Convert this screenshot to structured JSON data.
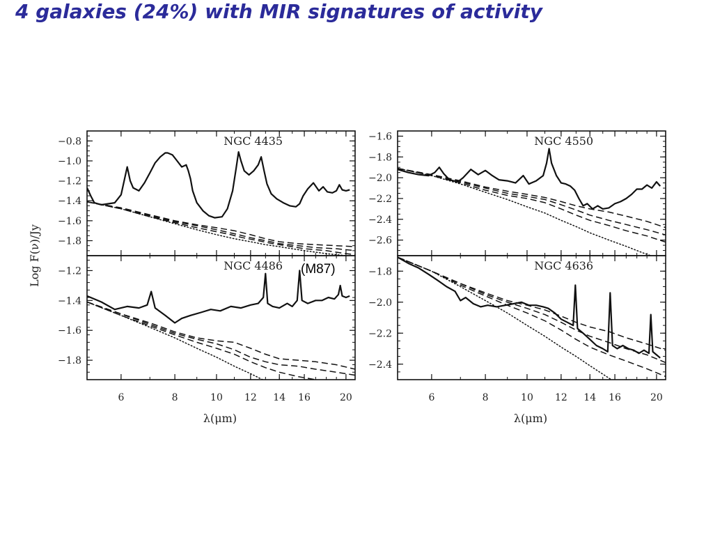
{
  "slide": {
    "title": "4 galaxies (24%) with MIR signatures of activity",
    "title_color": "#2b2b9a"
  },
  "figure": {
    "ylabel": "Log F(ν)/Jy",
    "xlabel": "λ(μm)",
    "annotation": "(M87)"
  },
  "chart_data": [
    {
      "type": "line",
      "scale": "log-x",
      "title": "NGC 4435",
      "xlabel": "λ(μm)",
      "ylabel": "Log F(ν)/Jy",
      "xlim": [
        5.0,
        21.0
      ],
      "ylim": [
        -1.95,
        -0.7
      ],
      "xticks": [
        6,
        8,
        10,
        12,
        14,
        16,
        20
      ],
      "yticks": [
        -0.8,
        -1.0,
        -1.2,
        -1.4,
        -1.6,
        -1.8
      ],
      "series": [
        {
          "style": "solid",
          "x": [
            5.0,
            5.1,
            5.2,
            5.4,
            5.6,
            5.8,
            6.0,
            6.1,
            6.2,
            6.3,
            6.4,
            6.6,
            6.8,
            7.0,
            7.2,
            7.4,
            7.6,
            7.7,
            7.9,
            8.1,
            8.3,
            8.5,
            8.6,
            8.7,
            8.8,
            9.0,
            9.3,
            9.6,
            9.9,
            10.3,
            10.6,
            10.9,
            11.1,
            11.25,
            11.4,
            11.6,
            11.9,
            12.2,
            12.5,
            12.7,
            12.9,
            13.1,
            13.4,
            13.8,
            14.3,
            14.8,
            15.3,
            15.6,
            15.9,
            16.3,
            16.8,
            17.3,
            17.7,
            18.1,
            18.6,
            19.0,
            19.3,
            19.6,
            20.0,
            20.4
          ],
          "y": [
            -1.27,
            -1.35,
            -1.42,
            -1.44,
            -1.43,
            -1.42,
            -1.34,
            -1.2,
            -1.06,
            -1.2,
            -1.27,
            -1.3,
            -1.22,
            -1.12,
            -1.02,
            -0.96,
            -0.92,
            -0.92,
            -0.94,
            -1.0,
            -1.06,
            -1.04,
            -1.1,
            -1.18,
            -1.3,
            -1.42,
            -1.5,
            -1.55,
            -1.57,
            -1.56,
            -1.48,
            -1.3,
            -1.08,
            -0.91,
            -1.0,
            -1.1,
            -1.14,
            -1.1,
            -1.04,
            -0.96,
            -1.1,
            -1.23,
            -1.33,
            -1.38,
            -1.42,
            -1.45,
            -1.46,
            -1.43,
            -1.35,
            -1.28,
            -1.22,
            -1.3,
            -1.26,
            -1.31,
            -1.32,
            -1.3,
            -1.24,
            -1.29,
            -1.3,
            -1.29
          ]
        },
        {
          "style": "dotted",
          "x": [
            5.0,
            6.0,
            7.0,
            8.0,
            9.0,
            10.0,
            11.0,
            12.0,
            13.0,
            14.0,
            16.0,
            18.0,
            20.0,
            21.0
          ],
          "y": [
            -1.41,
            -1.48,
            -1.56,
            -1.63,
            -1.69,
            -1.74,
            -1.78,
            -1.81,
            -1.84,
            -1.86,
            -1.9,
            -1.93,
            -1.95,
            -1.96
          ]
        },
        {
          "style": "dashed",
          "x": [
            5.0,
            6.0,
            7.0,
            8.0,
            9.0,
            10.0,
            10.8,
            11.5,
            12.5,
            13.5,
            14.5,
            16.0,
            18.0,
            20.0,
            21.0
          ],
          "y": [
            -1.41,
            -1.48,
            -1.56,
            -1.62,
            -1.67,
            -1.71,
            -1.74,
            -1.77,
            -1.8,
            -1.83,
            -1.85,
            -1.88,
            -1.9,
            -1.93,
            -1.94
          ]
        },
        {
          "style": "dashed",
          "x": [
            5.0,
            6.0,
            7.0,
            8.0,
            9.0,
            10.0,
            11.0,
            12.0,
            13.0,
            14.0,
            15.5,
            17.0,
            19.0,
            21.0
          ],
          "y": [
            -1.41,
            -1.48,
            -1.55,
            -1.61,
            -1.65,
            -1.69,
            -1.73,
            -1.77,
            -1.8,
            -1.83,
            -1.85,
            -1.87,
            -1.88,
            -1.9
          ]
        },
        {
          "style": "dashed",
          "x": [
            5.0,
            6.0,
            7.0,
            8.0,
            9.0,
            10.0,
            11.0,
            12.0,
            13.0,
            14.0,
            15.5,
            17.0,
            19.0,
            21.0
          ],
          "y": [
            -1.41,
            -1.47,
            -1.54,
            -1.6,
            -1.64,
            -1.67,
            -1.7,
            -1.74,
            -1.78,
            -1.81,
            -1.83,
            -1.84,
            -1.85,
            -1.86
          ]
        }
      ]
    },
    {
      "type": "line",
      "scale": "log-x",
      "title": "NGC 4550",
      "xlabel": "λ(μm)",
      "ylabel": "Log F(ν)/Jy",
      "xlim": [
        5.0,
        21.0
      ],
      "ylim": [
        -2.75,
        -1.55
      ],
      "xticks": [
        6,
        8,
        10,
        12,
        14,
        16,
        20
      ],
      "yticks": [
        -1.6,
        -1.8,
        -2.0,
        -2.2,
        -2.4,
        -2.6
      ],
      "series": [
        {
          "style": "solid",
          "x": [
            5.0,
            5.3,
            5.6,
            5.9,
            6.1,
            6.25,
            6.4,
            6.6,
            6.9,
            7.1,
            7.4,
            7.7,
            8.0,
            8.3,
            8.6,
            9.0,
            9.4,
            9.8,
            10.1,
            10.5,
            10.9,
            11.1,
            11.25,
            11.4,
            11.7,
            12.0,
            12.3,
            12.6,
            12.9,
            13.2,
            13.5,
            13.8,
            14.2,
            14.6,
            15.0,
            15.5,
            16.0,
            16.5,
            17.0,
            17.5,
            18.0,
            18.5,
            19.0,
            19.5,
            20.0,
            20.4
          ],
          "y": [
            -1.92,
            -1.95,
            -1.97,
            -1.98,
            -1.95,
            -1.9,
            -1.96,
            -2.02,
            -2.04,
            -2.0,
            -1.92,
            -1.97,
            -1.93,
            -1.98,
            -2.02,
            -2.03,
            -2.05,
            -1.98,
            -2.06,
            -2.03,
            -1.98,
            -1.86,
            -1.72,
            -1.86,
            -1.98,
            -2.05,
            -2.06,
            -2.08,
            -2.12,
            -2.2,
            -2.27,
            -2.25,
            -2.3,
            -2.27,
            -2.3,
            -2.29,
            -2.25,
            -2.23,
            -2.2,
            -2.16,
            -2.11,
            -2.11,
            -2.07,
            -2.1,
            -2.04,
            -2.08
          ]
        },
        {
          "style": "dotted",
          "x": [
            5.0,
            6.0,
            7.0,
            8.0,
            9.0,
            10.0,
            11.0,
            12.0,
            13.0,
            14.0,
            15.5,
            17.0,
            18.5,
            20.0,
            21.0
          ],
          "y": [
            -1.91,
            -1.98,
            -2.06,
            -2.14,
            -2.21,
            -2.28,
            -2.34,
            -2.41,
            -2.47,
            -2.53,
            -2.6,
            -2.66,
            -2.72,
            -2.77,
            -2.8
          ]
        },
        {
          "style": "dashed",
          "x": [
            5.0,
            6.0,
            7.0,
            8.0,
            9.0,
            10.0,
            11.0,
            12.0,
            13.0,
            14.0,
            15.5,
            17.0,
            19.0,
            21.0
          ],
          "y": [
            -1.91,
            -1.98,
            -2.05,
            -2.12,
            -2.17,
            -2.2,
            -2.24,
            -2.3,
            -2.36,
            -2.41,
            -2.46,
            -2.51,
            -2.56,
            -2.62
          ]
        },
        {
          "style": "dashed",
          "x": [
            5.0,
            6.0,
            7.0,
            8.0,
            9.0,
            10.0,
            11.0,
            12.0,
            13.0,
            14.0,
            15.5,
            17.0,
            19.0,
            21.0
          ],
          "y": [
            -1.91,
            -1.97,
            -2.04,
            -2.1,
            -2.15,
            -2.18,
            -2.21,
            -2.26,
            -2.31,
            -2.36,
            -2.41,
            -2.45,
            -2.5,
            -2.55
          ]
        },
        {
          "style": "dashed",
          "x": [
            5.0,
            6.0,
            7.0,
            8.0,
            9.0,
            10.0,
            11.0,
            12.0,
            13.0,
            14.0,
            15.5,
            17.0,
            19.0,
            21.0
          ],
          "y": [
            -1.91,
            -1.97,
            -2.03,
            -2.09,
            -2.13,
            -2.16,
            -2.19,
            -2.23,
            -2.27,
            -2.3,
            -2.33,
            -2.37,
            -2.42,
            -2.48
          ]
        }
      ]
    },
    {
      "type": "line",
      "scale": "log-x",
      "title": "NGC 4486",
      "xlabel": "λ(μm)",
      "ylabel": "Log F(ν)/Jy",
      "xlim": [
        5.0,
        21.0
      ],
      "ylim": [
        -1.93,
        -1.1
      ],
      "xticks": [
        6,
        8,
        10,
        12,
        14,
        16,
        20
      ],
      "yticks": [
        -1.2,
        -1.4,
        -1.6,
        -1.8
      ],
      "series": [
        {
          "style": "solid",
          "x": [
            5.0,
            5.4,
            5.8,
            6.2,
            6.6,
            6.9,
            7.05,
            7.2,
            7.6,
            8.0,
            8.3,
            8.7,
            9.2,
            9.7,
            10.2,
            10.8,
            11.4,
            12.0,
            12.5,
            12.85,
            13.0,
            13.15,
            13.5,
            14.0,
            14.6,
            15.0,
            15.4,
            15.6,
            15.8,
            16.3,
            17.0,
            17.6,
            18.2,
            18.8,
            19.2,
            19.4,
            19.6,
            20.0,
            20.4
          ],
          "y": [
            -1.37,
            -1.41,
            -1.46,
            -1.44,
            -1.45,
            -1.43,
            -1.34,
            -1.45,
            -1.5,
            -1.55,
            -1.52,
            -1.5,
            -1.48,
            -1.46,
            -1.47,
            -1.44,
            -1.45,
            -1.43,
            -1.42,
            -1.38,
            -1.22,
            -1.42,
            -1.44,
            -1.45,
            -1.42,
            -1.44,
            -1.4,
            -1.2,
            -1.4,
            -1.42,
            -1.4,
            -1.4,
            -1.38,
            -1.39,
            -1.36,
            -1.3,
            -1.37,
            -1.38,
            -1.37
          ]
        },
        {
          "style": "dotted",
          "x": [
            5.0,
            6.0,
            7.0,
            8.0,
            9.0,
            10.0,
            11.0,
            12.0,
            13.0,
            14.0,
            15.5,
            17.0,
            19.0,
            21.0
          ],
          "y": [
            -1.41,
            -1.5,
            -1.58,
            -1.65,
            -1.72,
            -1.78,
            -1.84,
            -1.89,
            -1.94,
            -1.99,
            -2.05,
            -2.1,
            -2.16,
            -2.21
          ]
        },
        {
          "style": "dashed",
          "x": [
            5.0,
            6.0,
            7.0,
            8.0,
            9.0,
            10.0,
            11.0,
            12.0,
            13.0,
            14.0,
            15.5,
            17.0,
            19.0,
            21.0
          ],
          "y": [
            -1.41,
            -1.5,
            -1.57,
            -1.63,
            -1.68,
            -1.72,
            -1.76,
            -1.81,
            -1.85,
            -1.88,
            -1.91,
            -1.93,
            -1.96,
            -1.98
          ]
        },
        {
          "style": "dashed",
          "x": [
            5.0,
            6.0,
            7.0,
            8.0,
            9.0,
            10.0,
            11.0,
            12.0,
            13.0,
            14.0,
            15.5,
            17.0,
            19.0,
            21.0
          ],
          "y": [
            -1.41,
            -1.49,
            -1.56,
            -1.62,
            -1.66,
            -1.69,
            -1.73,
            -1.78,
            -1.81,
            -1.83,
            -1.84,
            -1.86,
            -1.88,
            -1.9
          ]
        },
        {
          "style": "dashed",
          "x": [
            5.0,
            6.0,
            7.0,
            8.0,
            9.0,
            10.0,
            11.0,
            12.0,
            13.0,
            14.0,
            15.5,
            17.0,
            19.0,
            21.0
          ],
          "y": [
            -1.41,
            -1.49,
            -1.55,
            -1.61,
            -1.65,
            -1.67,
            -1.68,
            -1.72,
            -1.76,
            -1.79,
            -1.8,
            -1.81,
            -1.83,
            -1.86
          ]
        }
      ]
    },
    {
      "type": "line",
      "scale": "log-x",
      "title": "NGC 4636",
      "xlabel": "λ(μm)",
      "ylabel": "Log F(ν)/Jy",
      "xlim": [
        5.0,
        21.0
      ],
      "ylim": [
        -2.5,
        -1.7
      ],
      "xticks": [
        6,
        8,
        10,
        12,
        14,
        16,
        20
      ],
      "yticks": [
        -1.8,
        -2.0,
        -2.2,
        -2.4
      ],
      "series": [
        {
          "style": "solid",
          "x": [
            5.0,
            5.3,
            5.6,
            5.9,
            6.2,
            6.5,
            6.8,
            7.0,
            7.2,
            7.5,
            7.8,
            8.1,
            8.5,
            8.9,
            9.3,
            9.7,
            10.1,
            10.5,
            10.9,
            11.2,
            11.6,
            12.0,
            12.4,
            12.8,
            12.95,
            13.1,
            13.5,
            14.0,
            14.5,
            15.0,
            15.4,
            15.6,
            15.8,
            16.2,
            16.7,
            17.2,
            17.7,
            18.2,
            18.7,
            19.2,
            19.4,
            19.6,
            20.0,
            20.4
          ],
          "y": [
            -1.71,
            -1.75,
            -1.78,
            -1.82,
            -1.86,
            -1.9,
            -1.93,
            -1.99,
            -1.97,
            -2.01,
            -2.03,
            -2.02,
            -2.03,
            -2.02,
            -2.01,
            -2.0,
            -2.02,
            -2.02,
            -2.03,
            -2.04,
            -2.07,
            -2.11,
            -2.13,
            -2.15,
            -1.89,
            -2.17,
            -2.2,
            -2.24,
            -2.28,
            -2.3,
            -2.32,
            -1.94,
            -2.28,
            -2.3,
            -2.28,
            -2.3,
            -2.31,
            -2.33,
            -2.31,
            -2.33,
            -2.08,
            -2.32,
            -2.34,
            -2.36
          ]
        },
        {
          "style": "dotted",
          "x": [
            5.0,
            6.0,
            7.0,
            8.0,
            9.0,
            10.0,
            11.0,
            12.0,
            13.0,
            14.0,
            15.5,
            17.0,
            19.0,
            21.0
          ],
          "y": [
            -1.71,
            -1.8,
            -1.9,
            -1.99,
            -2.07,
            -2.15,
            -2.22,
            -2.29,
            -2.35,
            -2.41,
            -2.49,
            -2.56,
            -2.64,
            -2.72
          ]
        },
        {
          "style": "dashed",
          "x": [
            5.0,
            6.0,
            7.0,
            8.0,
            9.0,
            10.0,
            11.0,
            12.0,
            13.0,
            14.0,
            15.5,
            17.0,
            19.0,
            21.0
          ],
          "y": [
            -1.71,
            -1.8,
            -1.89,
            -1.96,
            -2.02,
            -2.07,
            -2.12,
            -2.18,
            -2.24,
            -2.29,
            -2.34,
            -2.38,
            -2.43,
            -2.48
          ]
        },
        {
          "style": "dashed",
          "x": [
            5.0,
            6.0,
            7.0,
            8.0,
            9.0,
            10.0,
            11.0,
            12.0,
            13.0,
            14.0,
            15.5,
            17.0,
            19.0,
            21.0
          ],
          "y": [
            -1.71,
            -1.8,
            -1.88,
            -1.95,
            -2.0,
            -2.04,
            -2.08,
            -2.13,
            -2.18,
            -2.22,
            -2.26,
            -2.3,
            -2.34,
            -2.39
          ]
        },
        {
          "style": "dashed",
          "x": [
            5.0,
            6.0,
            7.0,
            8.0,
            9.0,
            10.0,
            11.0,
            12.0,
            13.0,
            14.0,
            15.5,
            17.0,
            19.0,
            21.0
          ],
          "y": [
            -1.71,
            -1.8,
            -1.88,
            -1.94,
            -1.99,
            -2.02,
            -2.05,
            -2.09,
            -2.13,
            -2.16,
            -2.19,
            -2.23,
            -2.27,
            -2.31
          ]
        }
      ]
    }
  ]
}
